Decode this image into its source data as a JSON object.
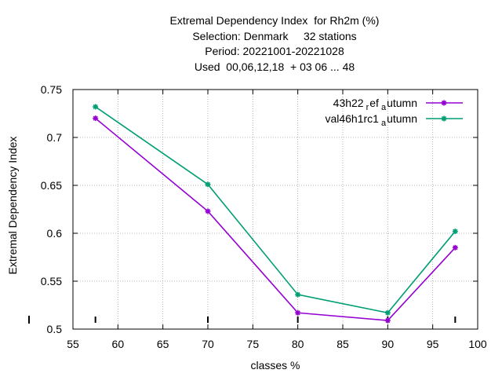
{
  "chart_data": {
    "type": "line",
    "title_lines": [
      "Extremal Dependency Index  for Rh2m (%)",
      "Selection: Denmark     32 stations",
      "Period: 20221001-20221028",
      "Used  00,06,12,18  + 03 06 ... 48"
    ],
    "xlabel": "classes %",
    "ylabel": "Extremal Dependency Index",
    "xlim": [
      55,
      100
    ],
    "ylim": [
      0.5,
      0.75
    ],
    "xticks": [
      55,
      60,
      65,
      70,
      75,
      80,
      85,
      90,
      95,
      100
    ],
    "yticks": [
      0.5,
      0.55,
      0.6,
      0.65,
      0.7,
      0.75
    ],
    "ytick_labels": [
      "0.5",
      "0.55",
      "0.6",
      "0.65",
      "0.7",
      "0.75"
    ],
    "grid": true,
    "legend_position": "top-right",
    "series": [
      {
        "name": "43h22_ref_autumn",
        "legend_parts": [
          "43h22",
          "r",
          "ef",
          "a",
          "utumn"
        ],
        "color": "#9400d3",
        "x": [
          57.5,
          70,
          80,
          90,
          97.5
        ],
        "y": [
          0.72,
          0.623,
          0.517,
          0.509,
          0.585
        ]
      },
      {
        "name": "val46h1rc1_autumn",
        "legend_parts": [
          "val46h1rc1",
          "a",
          "utumn"
        ],
        "color": "#009e73",
        "x": [
          57.5,
          70,
          80,
          90,
          97.5
        ],
        "y": [
          0.732,
          0.651,
          0.536,
          0.517,
          0.602
        ]
      }
    ],
    "rug_ticks_x": [
      57.5,
      70,
      80,
      90,
      97.5
    ]
  }
}
